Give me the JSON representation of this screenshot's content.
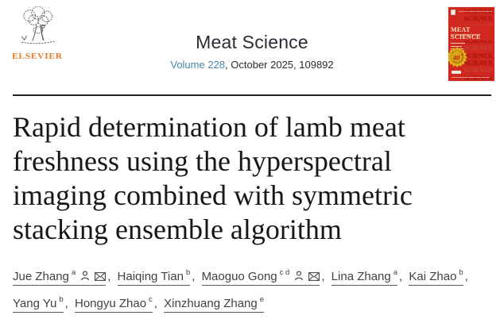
{
  "header": {
    "elsevier_wordmark": "ELSEVIER",
    "journal_title": "Meat Science",
    "volume_link": "Volume 228",
    "issue_suffix": ", October 2025, 109892"
  },
  "cover": {
    "masthead": "MEAT SCIENCE",
    "subtitle": "An International Journal",
    "repeated_word": "SCIENCE",
    "repeat_count": 10,
    "badge": {
      "number": "40",
      "suffix": "th",
      "ring_top": "1977 • 2017",
      "ring_bottom": "ANNIVERSARY"
    },
    "colors": {
      "background": "#d0281e",
      "masthead_text": "#f4e6c0",
      "repeat_dark": "#a51208",
      "repeat_light": "#c34537",
      "badge_gold": "#e2b31f",
      "badge_text": "#b3170e"
    }
  },
  "article": {
    "title": "Rapid determination of lamb meat freshness using the hyperspectral imaging combined with symmetric stacking ensemble algorithm",
    "title_lines": [
      "Rapid determination of lamb meat",
      "freshness using the hyperspectral",
      "imaging combined with symmetric",
      "stacking ensemble algorithm"
    ],
    "author_separator": ", ",
    "authors": [
      {
        "name": "Jue Zhang",
        "sup": "a",
        "has_profile_icon": true,
        "has_email_icon": true
      },
      {
        "name": "Haiqing Tian",
        "sup": "b",
        "has_profile_icon": false,
        "has_email_icon": false
      },
      {
        "name": "Maoguo Gong",
        "sup": "c d",
        "has_profile_icon": true,
        "has_email_icon": true
      },
      {
        "name": "Lina Zhang",
        "sup": "a",
        "has_profile_icon": false,
        "has_email_icon": false
      },
      {
        "name": "Kai Zhao",
        "sup": "b",
        "has_profile_icon": false,
        "has_email_icon": false
      },
      {
        "name": "Yang Yu",
        "sup": "b",
        "has_profile_icon": false,
        "has_email_icon": false
      },
      {
        "name": "Hongyu Zhao",
        "sup": "c",
        "has_profile_icon": false,
        "has_email_icon": false
      },
      {
        "name": "Xinzhuang Zhang",
        "sup": "e",
        "has_profile_icon": false,
        "has_email_icon": false
      }
    ]
  },
  "icons": {
    "elsevier_tree_icon": "elsevier-tree-sketch",
    "author_profile_icon": "person-outline",
    "email_icon": "envelope"
  },
  "colors": {
    "link_blue": "#4687ae",
    "heading_text": "#2b2b33",
    "title_text": "#17171b",
    "author_text": "#3f3f46",
    "rule": "#1f1f23",
    "elsevier_orange": "#e87722"
  }
}
